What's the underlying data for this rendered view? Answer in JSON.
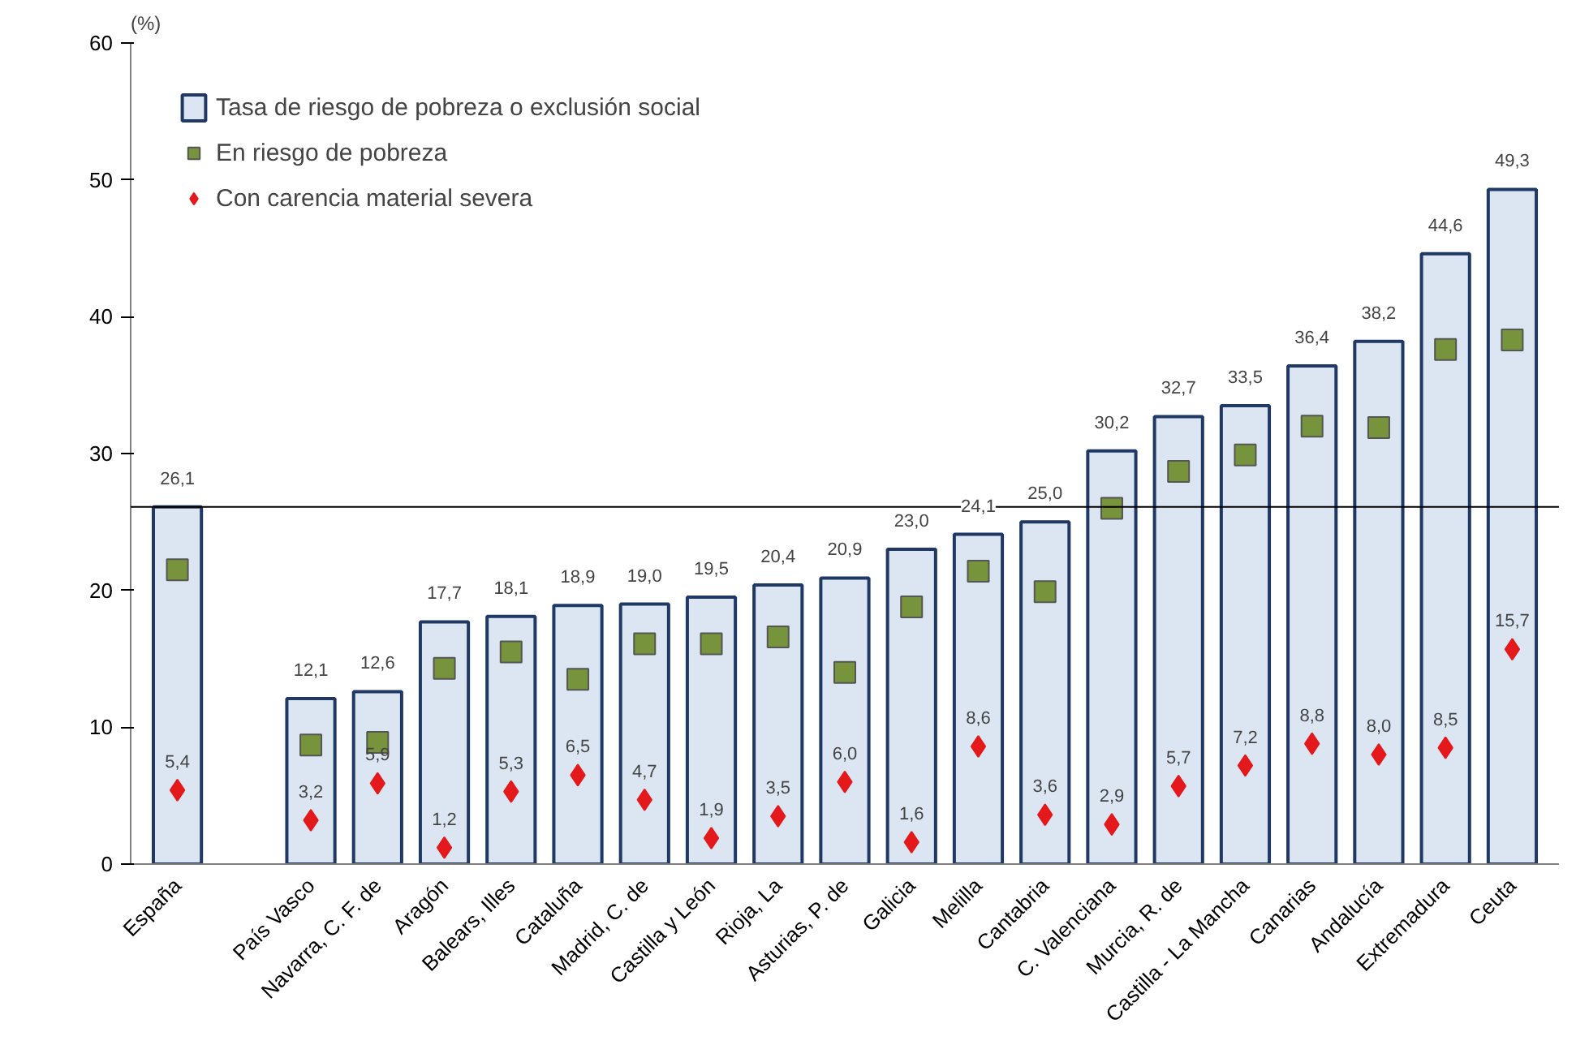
{
  "chart_data": {
    "type": "bar",
    "ylabel": "(%)",
    "categories": [
      "España",
      null,
      "País Vasco",
      "Navarra, C. F. de",
      "Aragón",
      "Balears, Illes",
      "Cataluña",
      "Madrid, C. de",
      "Castilla y León",
      "Rioja, La",
      "Asturias, P. de",
      "Galicia",
      "Melilla",
      "Cantabria",
      "C. Valenciana",
      "Murcia, R. de",
      "Castilla - La Mancha",
      "Canarias",
      "Andalucía",
      "Extremadura",
      "Ceuta"
    ],
    "series": [
      {
        "name": "Tasa de riesgo de pobreza o exclusión social",
        "color": "#dce6f2",
        "values": [
          26.1,
          null,
          12.1,
          12.6,
          17.7,
          18.1,
          18.9,
          19.0,
          19.5,
          20.4,
          20.9,
          23.0,
          24.1,
          25.0,
          30.2,
          32.7,
          33.5,
          36.4,
          38.2,
          44.6,
          49.3
        ],
        "value_labels": [
          "26,1",
          null,
          "12,1",
          "12,6",
          "17,7",
          "18,1",
          "18,9",
          "19,0",
          "19,5",
          "20,4",
          "20,9",
          "23,0",
          "24,1",
          "25,0",
          "30,2",
          "32,7",
          "33,5",
          "36,4",
          "38,2",
          "44,6",
          "49,3"
        ]
      },
      {
        "name": "En riesgo de pobreza",
        "type": "scatter",
        "marker": "square",
        "color": "#77933c",
        "values": [
          21.5,
          null,
          8.7,
          8.9,
          14.3,
          15.5,
          13.5,
          16.1,
          16.1,
          16.6,
          14.0,
          18.8,
          21.4,
          19.9,
          26.0,
          28.7,
          29.9,
          32.0,
          31.9,
          37.6,
          38.3
        ]
      },
      {
        "name": "Con carencia material severa",
        "type": "scatter",
        "marker": "diamond",
        "color": "#e3191b",
        "values": [
          5.4,
          null,
          3.2,
          5.9,
          1.2,
          5.3,
          6.5,
          4.7,
          1.9,
          3.5,
          6.0,
          1.6,
          8.6,
          3.6,
          2.9,
          5.7,
          7.2,
          8.8,
          8.0,
          8.5,
          15.7
        ],
        "value_labels": [
          "5,4",
          null,
          "3,2",
          "5,9",
          "1,2",
          "5,3",
          "6,5",
          "4,7",
          "1,9",
          "3,5",
          "6,0",
          "1,6",
          "8,6",
          "3,6",
          "2,9",
          "5,7",
          "7,2",
          "8,8",
          "8,0",
          "8,5",
          "15,7"
        ]
      }
    ],
    "ylim": [
      0,
      60
    ],
    "yticks": [
      0,
      10,
      20,
      30,
      40,
      50,
      60
    ],
    "grid": false,
    "legend": "top left",
    "ref_lines": [
      {
        "axis": "y",
        "value": 26.1,
        "color": "#000000"
      }
    ]
  }
}
